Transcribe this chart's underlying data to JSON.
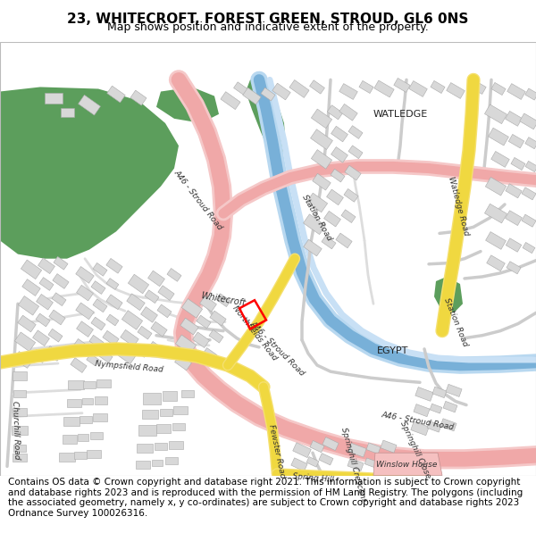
{
  "title": "23, WHITECROFT, FOREST GREEN, STROUD, GL6 0NS",
  "subtitle": "Map shows position and indicative extent of the property.",
  "footer": "Contains OS data © Crown copyright and database right 2021. This information is subject to Crown copyright and database rights 2023 and is reproduced with the permission of HM Land Registry. The polygons (including the associated geometry, namely x, y co-ordinates) are subject to Crown copyright and database rights 2023 Ordnance Survey 100026316.",
  "title_fontsize": 11,
  "subtitle_fontsize": 9,
  "footer_fontsize": 7.5
}
